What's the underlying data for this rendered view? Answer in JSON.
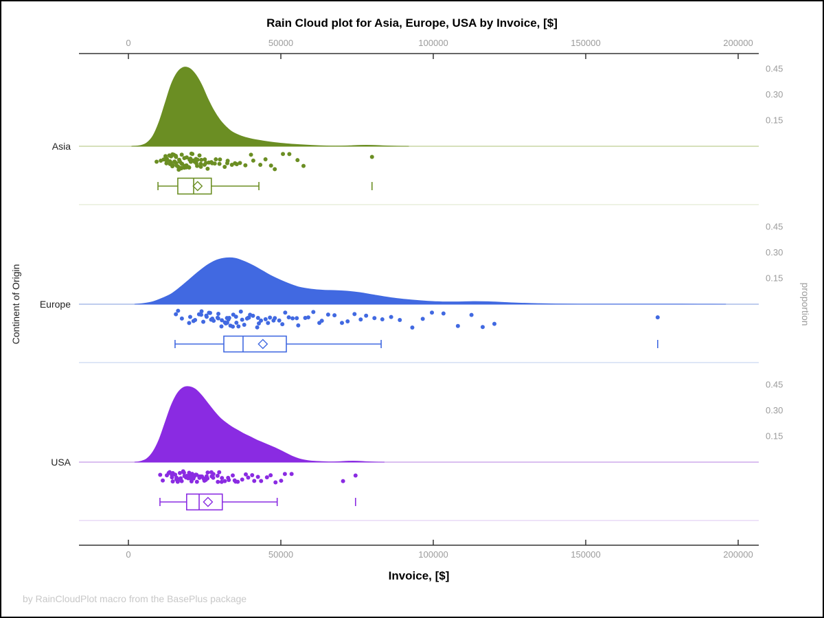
{
  "footer": "by RainCloudPlot macro from the BasePlus package",
  "chart_data": {
    "type": "raincloud",
    "title": "Rain Cloud plot for Asia, Europe, USA by Invoice, [$]",
    "xlabel": "Invoice, [$]",
    "xlabel_color": "#F9BBCB",
    "ylabel": "Continent of Origin",
    "ylabel_right": "proportion",
    "xlim": [
      -16000,
      207000
    ],
    "x_ticks": [
      0,
      50000,
      100000,
      150000,
      200000
    ],
    "x_tick_labels": [
      "0",
      "50000",
      "100000",
      "150000",
      "200000"
    ],
    "proportion_ticks": [
      0.15,
      0.3,
      0.45
    ],
    "proportion_tick_labels": [
      "0.15",
      "0.30",
      "0.45"
    ],
    "axis_color": "#333333",
    "series": [
      {
        "name": "Asia",
        "color": "#6B8E23",
        "baseline_color": "#C9D6A3",
        "separator_color": "#E3E9D3",
        "box": {
          "whisker_low": 9700,
          "q1": 16200,
          "median": 21400,
          "mean": 22700,
          "q3": 27200,
          "whisker_high": 42800
        },
        "outliers": [
          79900
        ],
        "rain_seed": 7,
        "density": [
          [
            1000,
            0
          ],
          [
            4000,
            0.005
          ],
          [
            6000,
            0.02
          ],
          [
            8000,
            0.06
          ],
          [
            10000,
            0.14
          ],
          [
            12000,
            0.25
          ],
          [
            14000,
            0.36
          ],
          [
            16000,
            0.43
          ],
          [
            18000,
            0.46
          ],
          [
            20000,
            0.455
          ],
          [
            22000,
            0.42
          ],
          [
            24000,
            0.36
          ],
          [
            26000,
            0.28
          ],
          [
            28000,
            0.21
          ],
          [
            30000,
            0.155
          ],
          [
            32000,
            0.115
          ],
          [
            34000,
            0.085
          ],
          [
            37000,
            0.06
          ],
          [
            40000,
            0.045
          ],
          [
            44000,
            0.032
          ],
          [
            48000,
            0.022
          ],
          [
            52000,
            0.015
          ],
          [
            56000,
            0.01
          ],
          [
            60000,
            0.006
          ],
          [
            64000,
            0.003
          ],
          [
            68000,
            0.002
          ],
          [
            72000,
            0.003
          ],
          [
            76000,
            0.006
          ],
          [
            80000,
            0.006
          ],
          [
            84000,
            0.003
          ],
          [
            88000,
            0.001
          ],
          [
            92000,
            0
          ]
        ],
        "rain_x": [
          9800,
          10400,
          11600,
          11900,
          12300,
          12400,
          12700,
          13000,
          13050,
          13300,
          13600,
          13900,
          14100,
          14150,
          14400,
          14600,
          14900,
          15100,
          15150,
          15400,
          15600,
          15900,
          16100,
          16150,
          16400,
          16600,
          16900,
          17100,
          17400,
          17450,
          17700,
          17900,
          18200,
          18250,
          18500,
          18700,
          19000,
          19050,
          19300,
          19500,
          19800,
          20100,
          20150,
          20400,
          20700,
          21000,
          21050,
          21300,
          21600,
          21900,
          22200,
          22250,
          22600,
          23000,
          23400,
          23800,
          24200,
          24600,
          25000,
          25400,
          25900,
          26400,
          27000,
          27600,
          28200,
          28900,
          29600,
          30300,
          31100,
          31900,
          32800,
          33700,
          34700,
          35800,
          37000,
          38300,
          39700,
          41200,
          42800,
          44500,
          46300,
          48200,
          50300,
          52500,
          55000,
          57700,
          79900
        ]
      },
      {
        "name": "Europe",
        "color": "#4169E1",
        "baseline_color": "#A9BCE9",
        "separator_color": "#CBD6F1",
        "box": {
          "whisker_low": 15300,
          "q1": 31300,
          "median": 37600,
          "mean": 44100,
          "q3": 51800,
          "whisker_high": 82900
        },
        "outliers": [
          173600
        ],
        "rain_seed": 13,
        "density": [
          [
            2000,
            0
          ],
          [
            5000,
            0.005
          ],
          [
            8000,
            0.015
          ],
          [
            11000,
            0.035
          ],
          [
            14000,
            0.06
          ],
          [
            17000,
            0.1
          ],
          [
            20000,
            0.145
          ],
          [
            23000,
            0.19
          ],
          [
            26000,
            0.23
          ],
          [
            29000,
            0.258
          ],
          [
            32000,
            0.27
          ],
          [
            35000,
            0.268
          ],
          [
            38000,
            0.25
          ],
          [
            41000,
            0.225
          ],
          [
            44000,
            0.195
          ],
          [
            47000,
            0.165
          ],
          [
            50000,
            0.14
          ],
          [
            53000,
            0.118
          ],
          [
            56000,
            0.1
          ],
          [
            60000,
            0.088
          ],
          [
            64000,
            0.082
          ],
          [
            68000,
            0.08
          ],
          [
            72000,
            0.076
          ],
          [
            76000,
            0.068
          ],
          [
            80000,
            0.056
          ],
          [
            84000,
            0.044
          ],
          [
            88000,
            0.034
          ],
          [
            93000,
            0.025
          ],
          [
            98000,
            0.018
          ],
          [
            103000,
            0.014
          ],
          [
            108000,
            0.014
          ],
          [
            113000,
            0.016
          ],
          [
            118000,
            0.015
          ],
          [
            123000,
            0.011
          ],
          [
            128000,
            0.007
          ],
          [
            134000,
            0.004
          ],
          [
            140000,
            0.002
          ],
          [
            148000,
            0.001
          ],
          [
            158000,
            0.001
          ],
          [
            168000,
            0.001
          ],
          [
            178000,
            0.001
          ],
          [
            188000,
            0.0005
          ],
          [
            196000,
            0
          ]
        ],
        "rain_x": [
          15500,
          16800,
          18000,
          19500,
          20500,
          21500,
          22300,
          23000,
          23600,
          24200,
          24800,
          25300,
          25900,
          26400,
          26900,
          27400,
          27900,
          28400,
          28900,
          29400,
          29900,
          30300,
          30800,
          31200,
          31700,
          32100,
          32600,
          33000,
          33500,
          33900,
          34400,
          34800,
          35300,
          35800,
          36300,
          36800,
          37300,
          37900,
          38500,
          39100,
          39700,
          40300,
          41000,
          41700,
          42400,
          43100,
          43900,
          44700,
          45500,
          46400,
          47300,
          48200,
          49200,
          50200,
          51300,
          52400,
          53600,
          54800,
          56100,
          57500,
          59000,
          60500,
          62100,
          63800,
          65600,
          67500,
          69500,
          71600,
          73800,
          76100,
          78500,
          81000,
          83700,
          86500,
          89500,
          92700,
          96100,
          99700,
          103500,
          107600,
          112000,
          116700,
          120000,
          173600
        ]
      },
      {
        "name": "USA",
        "color": "#8A2BE2",
        "baseline_color": "#CDA9EC",
        "separator_color": "#E3D2F3",
        "box": {
          "whisker_low": 10350,
          "q1": 19100,
          "median": 23200,
          "mean": 26100,
          "q3": 30800,
          "whisker_high": 48800
        },
        "outliers": [
          70400,
          74500
        ],
        "outlier_ticks": [
          74500
        ],
        "rain_seed": 21,
        "density": [
          [
            2000,
            0
          ],
          [
            4000,
            0.005
          ],
          [
            6000,
            0.02
          ],
          [
            8000,
            0.06
          ],
          [
            10000,
            0.13
          ],
          [
            12000,
            0.23
          ],
          [
            14000,
            0.33
          ],
          [
            16000,
            0.4
          ],
          [
            18000,
            0.435
          ],
          [
            20000,
            0.44
          ],
          [
            22000,
            0.425
          ],
          [
            24000,
            0.39
          ],
          [
            26000,
            0.345
          ],
          [
            28000,
            0.3
          ],
          [
            30000,
            0.26
          ],
          [
            32000,
            0.23
          ],
          [
            34000,
            0.205
          ],
          [
            36000,
            0.185
          ],
          [
            38000,
            0.165
          ],
          [
            40000,
            0.148
          ],
          [
            42000,
            0.13
          ],
          [
            44000,
            0.115
          ],
          [
            46000,
            0.1
          ],
          [
            48000,
            0.085
          ],
          [
            50000,
            0.068
          ],
          [
            52000,
            0.05
          ],
          [
            54000,
            0.033
          ],
          [
            56000,
            0.02
          ],
          [
            58000,
            0.012
          ],
          [
            60000,
            0.007
          ],
          [
            63000,
            0.004
          ],
          [
            66000,
            0.002
          ],
          [
            69000,
            0.003
          ],
          [
            72000,
            0.006
          ],
          [
            75000,
            0.006
          ],
          [
            78000,
            0.003
          ],
          [
            81000,
            0.001
          ],
          [
            84000,
            0
          ]
        ],
        "rain_x": [
          10500,
          11400,
          12200,
          12900,
          13400,
          13800,
          14200,
          14600,
          15000,
          15300,
          15700,
          16000,
          16300,
          16700,
          17000,
          17300,
          17600,
          17900,
          18200,
          18500,
          18800,
          19100,
          19400,
          19700,
          20000,
          20300,
          20600,
          20900,
          21200,
          21500,
          21800,
          22100,
          22400,
          22700,
          23000,
          23300,
          23700,
          24000,
          24400,
          24800,
          25200,
          25600,
          26000,
          26400,
          26800,
          27300,
          27800,
          28300,
          28800,
          29300,
          29900,
          30500,
          31100,
          31700,
          32400,
          33100,
          33800,
          34600,
          35400,
          36200,
          37100,
          38000,
          39000,
          40100,
          41200,
          42400,
          43700,
          45100,
          46600,
          48200,
          49900,
          51700,
          53600,
          70400,
          74500
        ]
      }
    ]
  }
}
